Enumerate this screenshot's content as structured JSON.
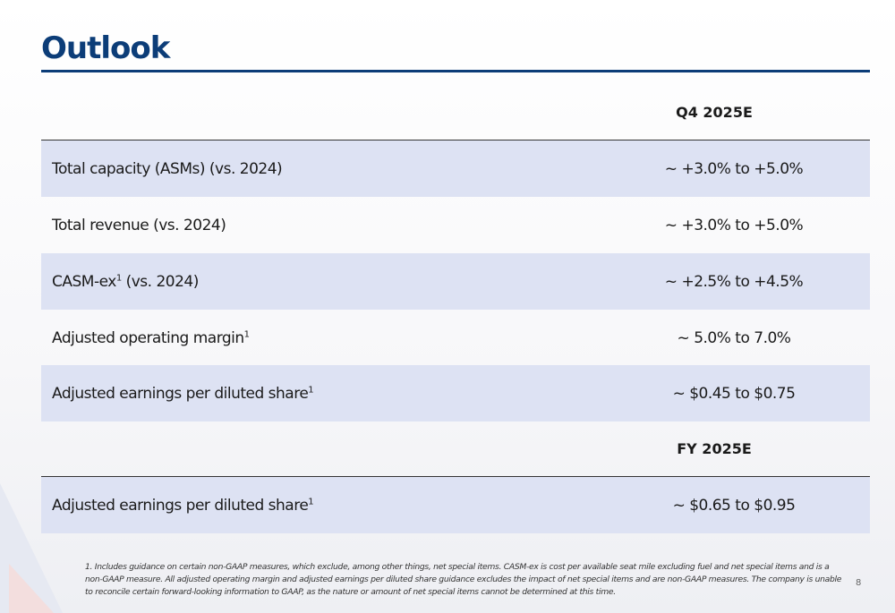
{
  "header": {
    "title": "Outlook"
  },
  "sections": [
    {
      "heading": "Q4 2025E",
      "rows": [
        {
          "label": "Total capacity (ASMs) (vs. 2024)",
          "value": "~ +3.0% to +5.0%"
        },
        {
          "label": "Total revenue (vs. 2024)",
          "value": "~ +3.0% to +5.0%"
        },
        {
          "label": "CASM-ex",
          "sup": "1",
          "label_end": "(vs. 2024)",
          "value": "~ +2.5% to +4.5%"
        },
        {
          "label": "Adjusted operating margin",
          "sup": "1",
          "value": "~ 5.0% to 7.0%"
        },
        {
          "label": "Adjusted earnings per diluted share",
          "sup": "1",
          "value": "~ $0.45 to $0.75"
        }
      ]
    },
    {
      "heading": "FY 2025E",
      "rows": [
        {
          "label": "Adjusted earnings per diluted share",
          "sup": "1",
          "value": "~ $0.65 to $0.95"
        }
      ]
    }
  ],
  "footnote": "1. Includes guidance on certain non-GAAP measures, which exclude, among other things, net special items. CASM-ex is cost per available seat mile excluding fuel and net special items and is a non-GAAP measure. All adjusted operating margin and adjusted earnings per diluted share guidance excludes the impact of net special items and are non-GAAP measures. The company is unable to reconcile certain forward-looking information to GAAP, as the nature or amount of net special items cannot be determined at this time.",
  "page_number": "8"
}
